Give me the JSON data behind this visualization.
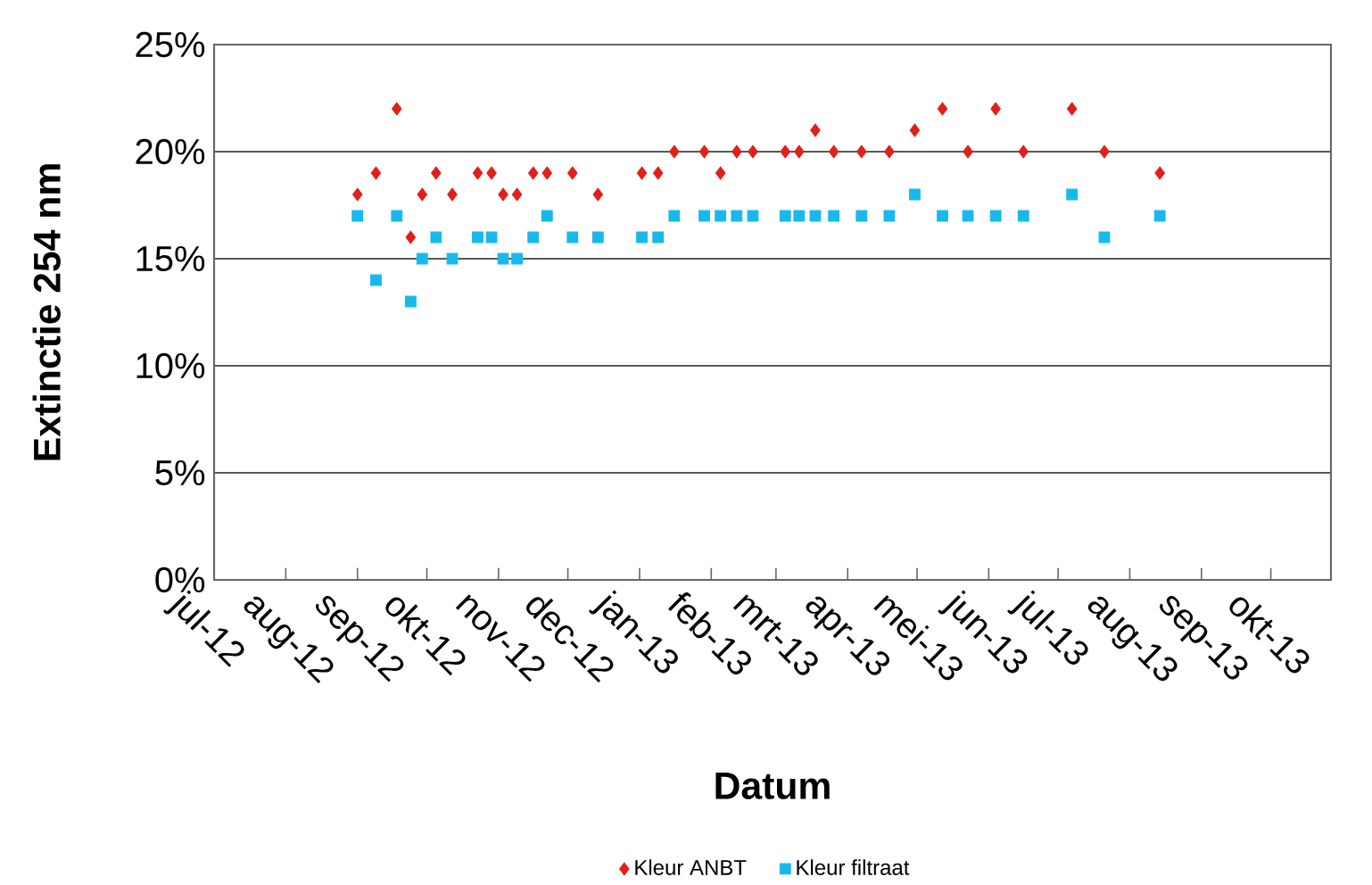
{
  "chart_data": {
    "type": "scatter",
    "xlabel": "Datum",
    "ylabel": "Extinctie 254 nm",
    "x": [
      "2012-09-01",
      "2012-09-09",
      "2012-09-18",
      "2012-09-24",
      "2012-09-29",
      "2012-10-05",
      "2012-10-12",
      "2012-10-23",
      "2012-10-29",
      "2012-11-03",
      "2012-11-09",
      "2012-11-16",
      "2012-11-22",
      "2012-12-03",
      "2012-12-14",
      "2013-01-02",
      "2013-01-09",
      "2013-01-16",
      "2013-01-29",
      "2013-02-05",
      "2013-02-12",
      "2013-02-19",
      "2013-03-05",
      "2013-03-11",
      "2013-03-18",
      "2013-03-26",
      "2013-04-07",
      "2013-04-19",
      "2013-04-30",
      "2013-05-12",
      "2013-05-23",
      "2013-06-04",
      "2013-06-16",
      "2013-07-07",
      "2013-07-21",
      "2013-08-14"
    ],
    "series": [
      {
        "name": "Kleur ANBT",
        "color": "#e0201b",
        "marker": "diamond",
        "values": [
          18,
          19,
          22,
          16,
          18,
          19,
          18,
          19,
          19,
          18,
          18,
          19,
          19,
          19,
          18,
          19,
          19,
          20,
          20,
          19,
          20,
          20,
          20,
          20,
          21,
          20,
          20,
          20,
          21,
          22,
          20,
          22,
          20,
          22,
          20,
          19
        ]
      },
      {
        "name": "Kleur filtraat",
        "color": "#17b9ec",
        "marker": "square",
        "values": [
          17,
          14,
          17,
          13,
          15,
          16,
          15,
          16,
          16,
          15,
          15,
          16,
          17,
          16,
          16,
          16,
          16,
          17,
          17,
          17,
          17,
          17,
          17,
          17,
          17,
          17,
          17,
          17,
          18,
          17,
          17,
          17,
          17,
          18,
          16,
          17
        ]
      }
    ],
    "xlim": [
      "2012-07-01",
      "2013-10-27"
    ],
    "xticks": [
      {
        "value": "2012-07-01",
        "label": "jul-12"
      },
      {
        "value": "2012-08-01",
        "label": "aug-12"
      },
      {
        "value": "2012-09-01",
        "label": "sep-12"
      },
      {
        "value": "2012-10-01",
        "label": "okt-12"
      },
      {
        "value": "2012-11-01",
        "label": "nov-12"
      },
      {
        "value": "2012-12-01",
        "label": "dec-12"
      },
      {
        "value": "2013-01-01",
        "label": "jan-13"
      },
      {
        "value": "2013-02-01",
        "label": "feb-13"
      },
      {
        "value": "2013-03-01",
        "label": "mrt-13"
      },
      {
        "value": "2013-04-01",
        "label": "apr-13"
      },
      {
        "value": "2013-05-01",
        "label": "mei-13"
      },
      {
        "value": "2013-06-01",
        "label": "jun-13"
      },
      {
        "value": "2013-07-01",
        "label": "jul-13"
      },
      {
        "value": "2013-08-01",
        "label": "aug-13"
      },
      {
        "value": "2013-09-01",
        "label": "sep-13"
      },
      {
        "value": "2013-10-01",
        "label": "okt-13"
      }
    ],
    "ylim": [
      0,
      25
    ],
    "yticks": [
      {
        "value": 0,
        "label": "0%"
      },
      {
        "value": 5,
        "label": "5%"
      },
      {
        "value": 10,
        "label": "10%"
      },
      {
        "value": 15,
        "label": "15%"
      },
      {
        "value": 20,
        "label": "20%"
      },
      {
        "value": 25,
        "label": "25%"
      }
    ],
    "grid": "y",
    "legend": "bottom"
  }
}
